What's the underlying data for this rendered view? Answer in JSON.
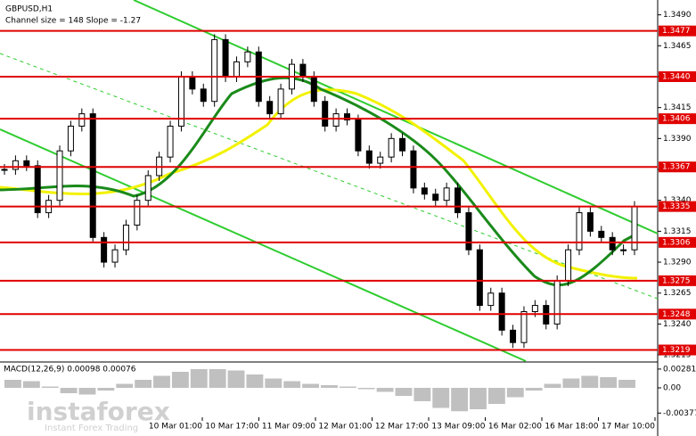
{
  "chart_data": {
    "type": "candlestick",
    "title": "GBPUSD,H1",
    "subtitle": "Channel size = 148 Slope = -1.27",
    "values": [
      1.3365,
      1.3372,
      1.3368,
      1.333,
      1.334,
      1.338,
      1.34,
      1.341,
      1.331,
      1.329,
      1.33,
      1.332,
      1.334,
      1.336,
      1.3375,
      1.34,
      1.344,
      1.343,
      1.342,
      1.347,
      1.344,
      1.3452,
      1.346,
      1.342,
      1.341,
      1.343,
      1.345,
      1.344,
      1.342,
      1.34,
      1.341,
      1.3405,
      1.338,
      1.337,
      1.3375,
      1.339,
      1.338,
      1.335,
      1.3345,
      1.334,
      1.335,
      1.333,
      1.33,
      1.3255,
      1.3265,
      1.3235,
      1.3225,
      1.325,
      1.3255,
      1.324,
      1.3275,
      1.33,
      1.333,
      1.3315,
      1.331,
      1.33,
      1.33,
      1.3335
    ],
    "color": "#000000",
    "ylim": [
      1.321,
      1.3502
    ],
    "yticks": [
      {
        "value": 1.349,
        "label": "1.3490"
      },
      {
        "value": 1.3465,
        "label": "1.3465"
      },
      {
        "value": 1.344,
        "label": "1.3440"
      },
      {
        "value": 1.3415,
        "label": "1.3415"
      },
      {
        "value": 1.339,
        "label": "1.3390"
      },
      {
        "value": 1.3365,
        "label": "1.3365"
      },
      {
        "value": 1.334,
        "label": "1.3340"
      },
      {
        "value": 1.3315,
        "label": "1.3315"
      },
      {
        "value": 1.329,
        "label": "1.3290"
      },
      {
        "value": 1.3265,
        "label": "1.3265"
      },
      {
        "value": 1.324,
        "label": "1.3240"
      },
      {
        "value": 1.3215,
        "label": "1.3215"
      }
    ],
    "levels": [
      {
        "value": 1.3477,
        "label": "1.3477"
      },
      {
        "value": 1.344,
        "label": "1.3440"
      },
      {
        "value": 1.3406,
        "label": "1.3406"
      },
      {
        "value": 1.3367,
        "label": "1.3367"
      },
      {
        "value": 1.3335,
        "label": "1.3335"
      },
      {
        "value": 1.3306,
        "label": "1.3306"
      },
      {
        "value": 1.3275,
        "label": "1.3275"
      },
      {
        "value": 1.3248,
        "label": "1.3248"
      },
      {
        "value": 1.3219,
        "label": "1.3219"
      }
    ],
    "level_color": "#e00000",
    "x_labels": [
      "10 Mar 01:00",
      "10 Mar 17:00",
      "11 Mar 09:00",
      "12 Mar 01:00",
      "12 Mar 17:00",
      "13 Mar 09:00",
      "16 Mar 02:00",
      "16 Mar 18:00",
      "17 Mar 10:00"
    ],
    "macd": {
      "label": "MACD(12,26,9) 0.00098 0.00076",
      "values": [
        0.0012,
        0.001,
        0.0002,
        -0.0008,
        -0.001,
        -0.0004,
        0.0006,
        0.0012,
        0.0018,
        0.0024,
        0.0028,
        0.0028,
        0.0026,
        0.002,
        0.0014,
        0.001,
        0.0006,
        0.0004,
        0.0002,
        -0.0002,
        -0.0006,
        -0.0012,
        -0.002,
        -0.003,
        -0.0035,
        -0.0032,
        -0.0024,
        -0.0014,
        -0.0004,
        0.0006,
        0.0014,
        0.0018,
        0.0016,
        0.0012
      ],
      "color": "#c0c0c0",
      "ylim": [
        -0.0072,
        0.0036
      ],
      "yticks": [
        0.00281,
        {
          "value": 0,
          "label": "0.00"
        },
        -0.00377
      ]
    },
    "watermark": "instaforex",
    "watermark_sub": "Instant Forex Trading"
  }
}
